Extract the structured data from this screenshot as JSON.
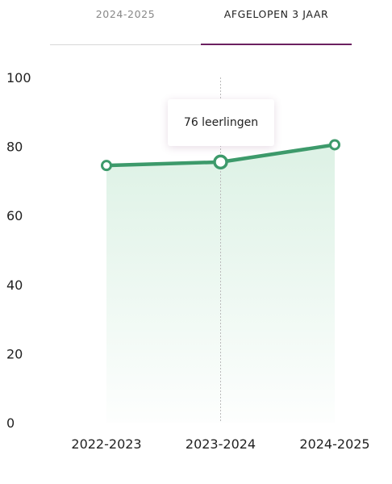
{
  "tabs": [
    {
      "label": "2024-2025",
      "active": false
    },
    {
      "label": "AFGELOPEN 3 JAAR",
      "active": true
    }
  ],
  "tooltip": {
    "text": "76 leerlingen"
  },
  "colors": {
    "line": "#3d9a6b",
    "area": "#e6f5ec",
    "tab_active": "#6b2060",
    "crosshair": "#bbbbbb"
  },
  "chart_data": {
    "type": "line",
    "x": [
      "2022-2023",
      "2023-2024",
      "2024-2025"
    ],
    "series": [
      {
        "values": [
          74.5,
          75.5,
          80.5
        ]
      }
    ],
    "yticks": [
      "0",
      "20",
      "40",
      "60",
      "80",
      "100"
    ],
    "ylim": [
      0,
      100
    ],
    "grid": false,
    "highlighted_index": 1,
    "title": "",
    "xlabel": "",
    "ylabel": ""
  }
}
